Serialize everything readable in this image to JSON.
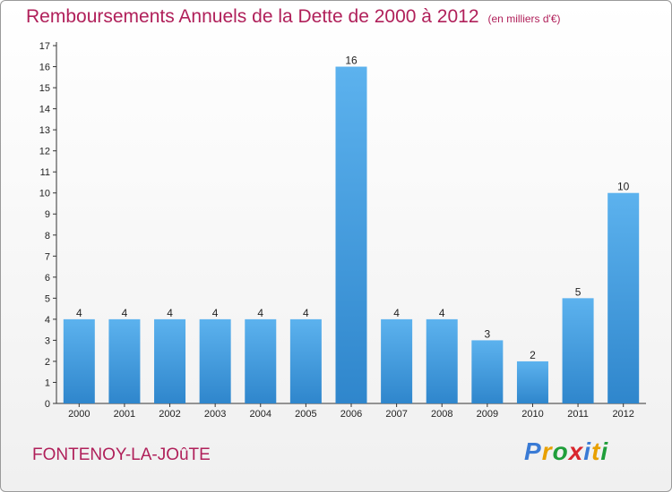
{
  "header": {
    "title": "Remboursements Annuels de la Dette de 2000 à 2012",
    "unit": "(en milliers d'€)"
  },
  "footer": {
    "place": "FONTENOY-LA-JOûTE",
    "logo": [
      "P",
      "r",
      "o",
      "x",
      "i",
      "t",
      "i"
    ],
    "logo_colors": [
      "#3a7bd5",
      "#e8a000",
      "#1f9e3a",
      "#d9262d",
      "#3a7bd5",
      "#e8a000",
      "#1f9e3a"
    ]
  },
  "chart_data": {
    "type": "bar",
    "categories": [
      "2000",
      "2001",
      "2002",
      "2003",
      "2004",
      "2005",
      "2006",
      "2007",
      "2008",
      "2009",
      "2010",
      "2011",
      "2012"
    ],
    "values": [
      4,
      4,
      4,
      4,
      4,
      4,
      16,
      4,
      4,
      3,
      2,
      5,
      10
    ],
    "ylim": [
      0,
      17
    ],
    "yticks": [
      0,
      1,
      2,
      3,
      4,
      5,
      6,
      7,
      8,
      9,
      10,
      11,
      12,
      13,
      14,
      15,
      16,
      17
    ],
    "grid": false,
    "bar_color": "#4aa3e8",
    "title": "Remboursements Annuels de la Dette de 2000 à 2012",
    "xlabel": "",
    "ylabel": ""
  }
}
